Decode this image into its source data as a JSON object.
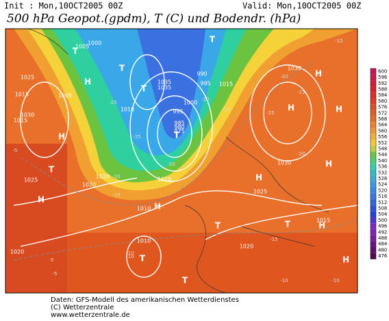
{
  "header": {
    "init": "Init : Mon,10OCT2005 00Z",
    "valid": "Valid: Mon,10OCT2005 00Z",
    "title": "500 hPa Geopot.(gpdm), T (C) und Bodendr. (hPa)"
  },
  "map": {
    "labels": [
      "1005",
      "1000",
      "995",
      "990",
      "985",
      "980",
      "975",
      "1010",
      "1015",
      "1020",
      "1025",
      "1030",
      "1035",
      "1025",
      "1020",
      "1015",
      "1010",
      "1010",
      "1020",
      "1025",
      "1030",
      "1015",
      "1020",
      "1030",
      "1035",
      "995",
      "1000",
      "1005",
      "1010",
      "1015"
    ],
    "highs": [
      "H",
      "H",
      "H",
      "H",
      "H",
      "H",
      "H",
      "H",
      "H",
      "H",
      "H"
    ],
    "lows": [
      "T",
      "T",
      "T",
      "T",
      "T",
      "T",
      "T",
      "T",
      "T",
      "T"
    ],
    "temps": [
      "-5",
      "-10",
      "-15",
      "-20",
      "-25",
      "-30",
      "-25",
      "-20",
      "-15",
      "-10",
      "-5",
      "-15",
      "-20",
      "-25",
      "-15",
      "-10",
      "-10",
      "-15",
      "-20",
      "-5"
    ],
    "colorbar": [
      "600",
      "596",
      "592",
      "588",
      "584",
      "580",
      "576",
      "572",
      "568",
      "564",
      "560",
      "556",
      "552",
      "548",
      "544",
      "540",
      "536",
      "532",
      "528",
      "524",
      "520",
      "516",
      "512",
      "508",
      "504",
      "500",
      "496",
      "492",
      "488",
      "484",
      "480",
      "476"
    ]
  },
  "footer": {
    "line1": "Daten: GFS-Modell des amerikanischen Wetterdienstes",
    "line2": "(C) Wetterzentrale",
    "line3": "www.wetterzentrale.de"
  }
}
